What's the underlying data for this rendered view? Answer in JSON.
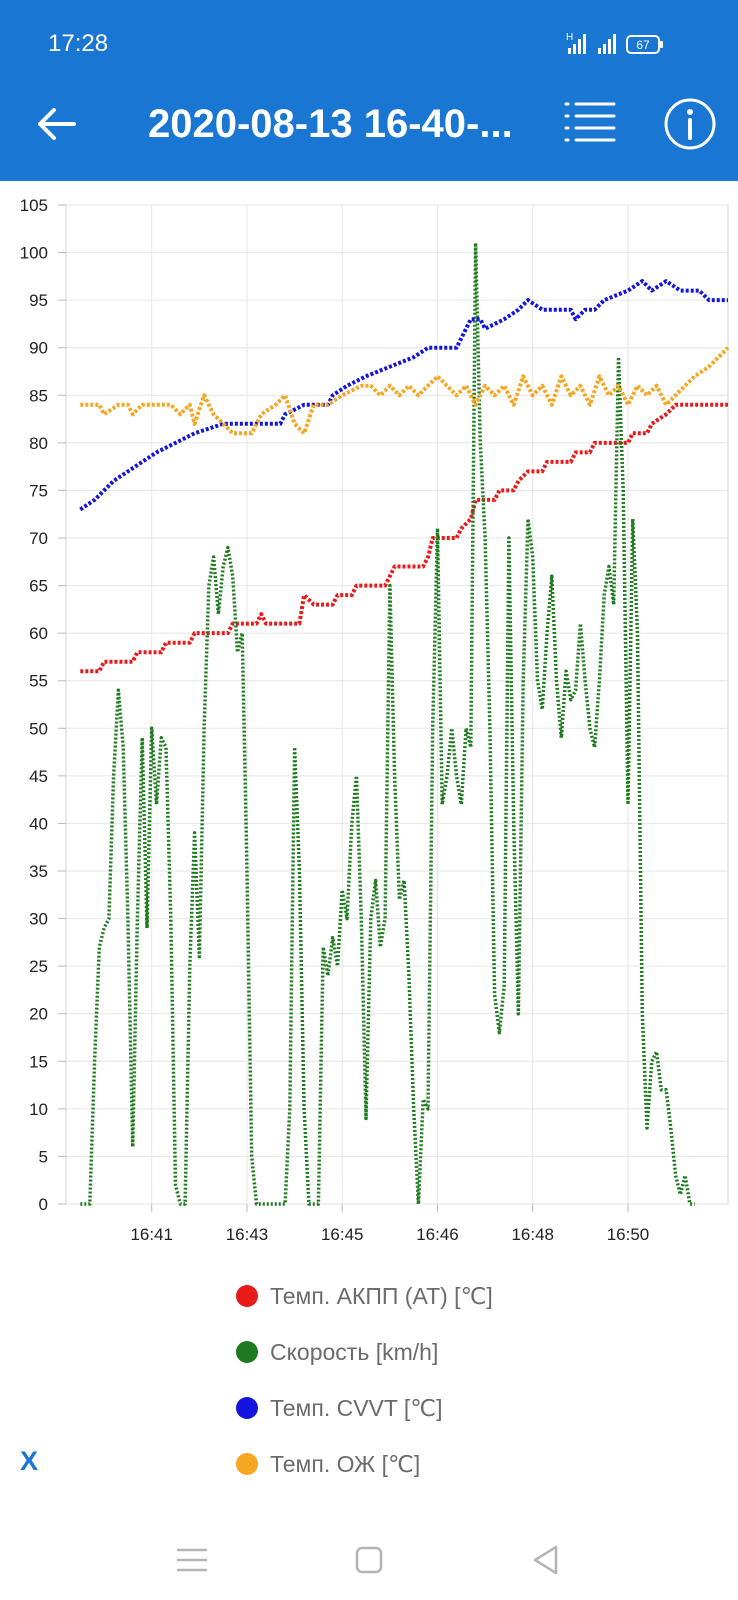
{
  "status": {
    "time": "17:28",
    "battery": "67"
  },
  "header": {
    "title": "2020-08-13 16-40-..."
  },
  "chart_data": {
    "type": "line",
    "ylim": [
      0,
      105
    ],
    "yticks": [
      0,
      5,
      10,
      15,
      20,
      25,
      30,
      35,
      40,
      45,
      50,
      55,
      60,
      65,
      70,
      75,
      80,
      85,
      90,
      95,
      100,
      105
    ],
    "xlim": [
      "16:39:40",
      "16:51:15"
    ],
    "xtick_labels": [
      "16:41",
      "16:43",
      "16:45",
      "16:46",
      "16:48",
      "16:50"
    ],
    "xtick_positions": [
      "16:41:10",
      "16:42:50",
      "16:44:30",
      "16:46:10",
      "16:47:50",
      "16:49:30"
    ],
    "grid": true,
    "legend": "bottom",
    "series": [
      {
        "name": "Темп. АКПП (AT) [℃]",
        "color": "#e81b1b",
        "points": [
          [
            "16:39:55",
            56
          ],
          [
            "16:40:15",
            56
          ],
          [
            "16:40:20",
            57
          ],
          [
            "16:40:50",
            57
          ],
          [
            "16:40:55",
            58
          ],
          [
            "16:41:20",
            58
          ],
          [
            "16:41:25",
            59
          ],
          [
            "16:41:50",
            59
          ],
          [
            "16:41:55",
            60
          ],
          [
            "16:42:30",
            60
          ],
          [
            "16:42:35",
            61
          ],
          [
            "16:43:00",
            61
          ],
          [
            "16:43:05",
            62
          ],
          [
            "16:43:10",
            61
          ],
          [
            "16:43:45",
            61
          ],
          [
            "16:43:50",
            64
          ],
          [
            "16:44:00",
            63
          ],
          [
            "16:44:20",
            63
          ],
          [
            "16:44:25",
            64
          ],
          [
            "16:44:40",
            64
          ],
          [
            "16:44:45",
            65
          ],
          [
            "16:45:15",
            65
          ],
          [
            "16:45:20",
            66
          ],
          [
            "16:45:25",
            67
          ],
          [
            "16:45:55",
            67
          ],
          [
            "16:46:00",
            68
          ],
          [
            "16:46:05",
            70
          ],
          [
            "16:46:30",
            70
          ],
          [
            "16:46:35",
            71
          ],
          [
            "16:46:45",
            72
          ],
          [
            "16:46:50",
            74
          ],
          [
            "16:47:10",
            74
          ],
          [
            "16:47:15",
            75
          ],
          [
            "16:47:30",
            75
          ],
          [
            "16:47:35",
            76
          ],
          [
            "16:47:45",
            77
          ],
          [
            "16:48:00",
            77
          ],
          [
            "16:48:05",
            78
          ],
          [
            "16:48:30",
            78
          ],
          [
            "16:48:35",
            79
          ],
          [
            "16:48:50",
            79
          ],
          [
            "16:48:55",
            80
          ],
          [
            "16:49:30",
            80
          ],
          [
            "16:49:35",
            81
          ],
          [
            "16:49:50",
            81
          ],
          [
            "16:49:55",
            82
          ],
          [
            "16:50:10",
            83
          ],
          [
            "16:50:20",
            84
          ],
          [
            "16:51:15",
            84
          ]
        ]
      },
      {
        "name": "Скорость [km/h]",
        "color": "#1e7a1e",
        "points": [
          [
            "16:39:55",
            0
          ],
          [
            "16:40:05",
            0
          ],
          [
            "16:40:10",
            15
          ],
          [
            "16:40:15",
            27
          ],
          [
            "16:40:20",
            29
          ],
          [
            "16:40:25",
            30
          ],
          [
            "16:40:30",
            45
          ],
          [
            "16:40:35",
            54
          ],
          [
            "16:40:40",
            48
          ],
          [
            "16:40:45",
            30
          ],
          [
            "16:40:50",
            6
          ],
          [
            "16:40:55",
            30
          ],
          [
            "16:41:00",
            49
          ],
          [
            "16:41:05",
            29
          ],
          [
            "16:41:10",
            50
          ],
          [
            "16:41:15",
            42
          ],
          [
            "16:41:20",
            49
          ],
          [
            "16:41:25",
            48
          ],
          [
            "16:41:30",
            30
          ],
          [
            "16:41:35",
            2
          ],
          [
            "16:41:40",
            0
          ],
          [
            "16:41:45",
            0
          ],
          [
            "16:41:50",
            25
          ],
          [
            "16:41:55",
            39
          ],
          [
            "16:42:00",
            26
          ],
          [
            "16:42:05",
            50
          ],
          [
            "16:42:10",
            65
          ],
          [
            "16:42:15",
            68
          ],
          [
            "16:42:20",
            62
          ],
          [
            "16:42:25",
            67
          ],
          [
            "16:42:30",
            69
          ],
          [
            "16:42:35",
            66
          ],
          [
            "16:42:40",
            58
          ],
          [
            "16:42:45",
            60
          ],
          [
            "16:42:50",
            35
          ],
          [
            "16:42:55",
            5
          ],
          [
            "16:43:00",
            0
          ],
          [
            "16:43:10",
            0
          ],
          [
            "16:43:20",
            0
          ],
          [
            "16:43:30",
            0
          ],
          [
            "16:43:35",
            10
          ],
          [
            "16:43:40",
            48
          ],
          [
            "16:43:45",
            35
          ],
          [
            "16:43:50",
            10
          ],
          [
            "16:43:55",
            0
          ],
          [
            "16:44:05",
            0
          ],
          [
            "16:44:10",
            27
          ],
          [
            "16:44:15",
            24
          ],
          [
            "16:44:20",
            28
          ],
          [
            "16:44:25",
            25
          ],
          [
            "16:44:30",
            33
          ],
          [
            "16:44:35",
            30
          ],
          [
            "16:44:40",
            40
          ],
          [
            "16:44:45",
            45
          ],
          [
            "16:44:50",
            30
          ],
          [
            "16:44:55",
            9
          ],
          [
            "16:45:00",
            30
          ],
          [
            "16:45:05",
            34
          ],
          [
            "16:45:10",
            27
          ],
          [
            "16:45:15",
            30
          ],
          [
            "16:45:20",
            65
          ],
          [
            "16:45:25",
            45
          ],
          [
            "16:45:30",
            32
          ],
          [
            "16:45:35",
            34
          ],
          [
            "16:45:40",
            24
          ],
          [
            "16:45:45",
            10
          ],
          [
            "16:45:50",
            0
          ],
          [
            "16:45:55",
            11
          ],
          [
            "16:46:00",
            10
          ],
          [
            "16:46:05",
            50
          ],
          [
            "16:46:10",
            71
          ],
          [
            "16:46:15",
            42
          ],
          [
            "16:46:20",
            45
          ],
          [
            "16:46:25",
            50
          ],
          [
            "16:46:30",
            45
          ],
          [
            "16:46:35",
            42
          ],
          [
            "16:46:40",
            50
          ],
          [
            "16:46:45",
            48
          ],
          [
            "16:46:50",
            101
          ],
          [
            "16:46:55",
            80
          ],
          [
            "16:47:00",
            70
          ],
          [
            "16:47:05",
            50
          ],
          [
            "16:47:10",
            22
          ],
          [
            "16:47:15",
            18
          ],
          [
            "16:47:20",
            23
          ],
          [
            "16:47:25",
            70
          ],
          [
            "16:47:30",
            40
          ],
          [
            "16:47:35",
            20
          ],
          [
            "16:47:40",
            55
          ],
          [
            "16:47:45",
            72
          ],
          [
            "16:47:50",
            68
          ],
          [
            "16:47:55",
            55
          ],
          [
            "16:48:00",
            52
          ],
          [
            "16:48:05",
            60
          ],
          [
            "16:48:10",
            66
          ],
          [
            "16:48:15",
            55
          ],
          [
            "16:48:20",
            49
          ],
          [
            "16:48:25",
            56
          ],
          [
            "16:48:30",
            53
          ],
          [
            "16:48:35",
            54
          ],
          [
            "16:48:40",
            61
          ],
          [
            "16:48:45",
            55
          ],
          [
            "16:48:50",
            50
          ],
          [
            "16:48:55",
            48
          ],
          [
            "16:49:00",
            55
          ],
          [
            "16:49:05",
            64
          ],
          [
            "16:49:10",
            67
          ],
          [
            "16:49:15",
            63
          ],
          [
            "16:49:20",
            89
          ],
          [
            "16:49:25",
            75
          ],
          [
            "16:49:30",
            42
          ],
          [
            "16:49:35",
            72
          ],
          [
            "16:49:40",
            60
          ],
          [
            "16:49:45",
            20
          ],
          [
            "16:49:50",
            8
          ],
          [
            "16:49:55",
            15
          ],
          [
            "16:50:00",
            16
          ],
          [
            "16:50:05",
            12
          ],
          [
            "16:50:10",
            12
          ],
          [
            "16:50:15",
            8
          ],
          [
            "16:50:20",
            3
          ],
          [
            "16:50:25",
            1
          ],
          [
            "16:50:30",
            3
          ],
          [
            "16:50:35",
            0
          ],
          [
            "16:50:40",
            0
          ]
        ]
      },
      {
        "name": "Темп. CVVT [℃]",
        "color": "#1414e0",
        "points": [
          [
            "16:39:55",
            73
          ],
          [
            "16:40:10",
            74
          ],
          [
            "16:40:20",
            75
          ],
          [
            "16:40:30",
            76
          ],
          [
            "16:40:45",
            77
          ],
          [
            "16:41:00",
            78
          ],
          [
            "16:41:15",
            79
          ],
          [
            "16:41:35",
            80
          ],
          [
            "16:41:55",
            81
          ],
          [
            "16:42:25",
            82
          ],
          [
            "16:43:25",
            82
          ],
          [
            "16:43:30",
            83
          ],
          [
            "16:43:50",
            84
          ],
          [
            "16:44:15",
            84
          ],
          [
            "16:44:20",
            85
          ],
          [
            "16:44:35",
            86
          ],
          [
            "16:44:55",
            87
          ],
          [
            "16:45:20",
            88
          ],
          [
            "16:45:45",
            89
          ],
          [
            "16:46:00",
            90
          ],
          [
            "16:46:30",
            90
          ],
          [
            "16:46:35",
            91
          ],
          [
            "16:46:45",
            93
          ],
          [
            "16:46:55",
            93
          ],
          [
            "16:47:00",
            92
          ],
          [
            "16:47:20",
            93
          ],
          [
            "16:47:35",
            94
          ],
          [
            "16:47:45",
            95
          ],
          [
            "16:48:00",
            94
          ],
          [
            "16:48:30",
            94
          ],
          [
            "16:48:35",
            93
          ],
          [
            "16:48:45",
            94
          ],
          [
            "16:48:55",
            94
          ],
          [
            "16:49:05",
            95
          ],
          [
            "16:49:30",
            96
          ],
          [
            "16:49:45",
            97
          ],
          [
            "16:49:55",
            96
          ],
          [
            "16:50:10",
            97
          ],
          [
            "16:50:25",
            96
          ],
          [
            "16:50:45",
            96
          ],
          [
            "16:50:55",
            95
          ],
          [
            "16:51:15",
            95
          ]
        ]
      },
      {
        "name": "Темп. ОЖ [℃]",
        "color": "#f5a623",
        "points": [
          [
            "16:39:55",
            84
          ],
          [
            "16:40:15",
            84
          ],
          [
            "16:40:20",
            83
          ],
          [
            "16:40:35",
            84
          ],
          [
            "16:40:45",
            84
          ],
          [
            "16:40:50",
            83
          ],
          [
            "16:41:00",
            84
          ],
          [
            "16:41:30",
            84
          ],
          [
            "16:41:40",
            83
          ],
          [
            "16:41:50",
            84
          ],
          [
            "16:41:55",
            82
          ],
          [
            "16:42:05",
            85
          ],
          [
            "16:42:15",
            83
          ],
          [
            "16:42:25",
            82
          ],
          [
            "16:42:35",
            81
          ],
          [
            "16:42:55",
            81
          ],
          [
            "16:43:05",
            83
          ],
          [
            "16:43:20",
            84
          ],
          [
            "16:43:30",
            85
          ],
          [
            "16:43:40",
            82
          ],
          [
            "16:43:50",
            81
          ],
          [
            "16:44:00",
            84
          ],
          [
            "16:44:15",
            84
          ],
          [
            "16:44:30",
            85
          ],
          [
            "16:44:50",
            86
          ],
          [
            "16:45:00",
            86
          ],
          [
            "16:45:10",
            85
          ],
          [
            "16:45:20",
            86
          ],
          [
            "16:45:30",
            85
          ],
          [
            "16:45:40",
            86
          ],
          [
            "16:45:50",
            85
          ],
          [
            "16:46:00",
            86
          ],
          [
            "16:46:10",
            87
          ],
          [
            "16:46:20",
            86
          ],
          [
            "16:46:30",
            85
          ],
          [
            "16:46:40",
            86
          ],
          [
            "16:46:50",
            84
          ],
          [
            "16:47:00",
            86
          ],
          [
            "16:47:10",
            85
          ],
          [
            "16:47:20",
            86
          ],
          [
            "16:47:30",
            84
          ],
          [
            "16:47:40",
            87
          ],
          [
            "16:47:50",
            85
          ],
          [
            "16:48:00",
            86
          ],
          [
            "16:48:10",
            84
          ],
          [
            "16:48:20",
            87
          ],
          [
            "16:48:30",
            85
          ],
          [
            "16:48:40",
            86
          ],
          [
            "16:48:50",
            84
          ],
          [
            "16:49:00",
            87
          ],
          [
            "16:49:10",
            85
          ],
          [
            "16:49:20",
            86
          ],
          [
            "16:49:30",
            84
          ],
          [
            "16:49:40",
            86
          ],
          [
            "16:49:50",
            85
          ],
          [
            "16:50:00",
            86
          ],
          [
            "16:50:10",
            84
          ],
          [
            "16:50:20",
            85
          ],
          [
            "16:50:30",
            86
          ],
          [
            "16:50:40",
            87
          ],
          [
            "16:50:55",
            88
          ],
          [
            "16:51:05",
            89
          ],
          [
            "16:51:15",
            90
          ]
        ]
      }
    ]
  },
  "legend_close_label": "X"
}
